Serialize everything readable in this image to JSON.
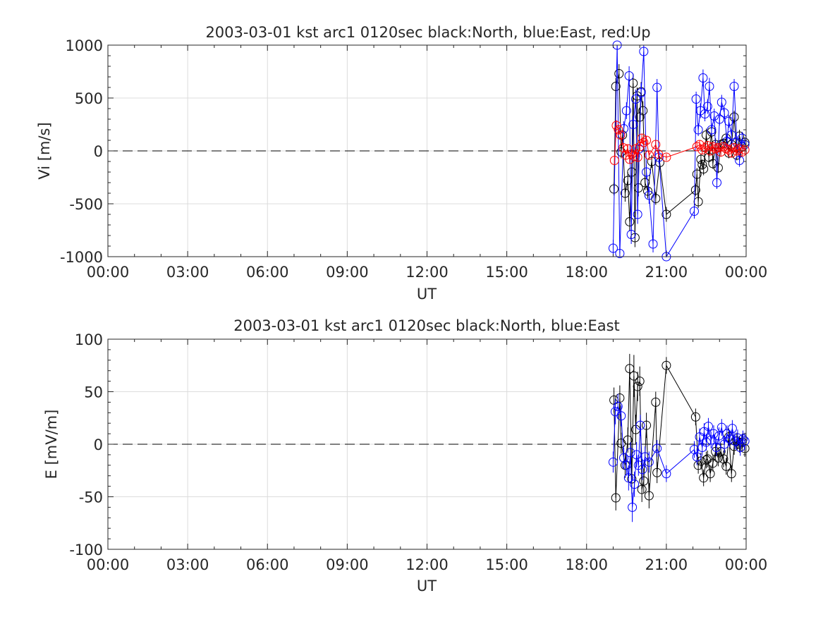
{
  "colors": {
    "north": "#000000",
    "east": "#0000ff",
    "up": "#ff0000",
    "grid": "#dcdcdc",
    "axis": "#262626"
  },
  "x_ticks": [
    "00:00",
    "03:00",
    "06:00",
    "09:00",
    "12:00",
    "15:00",
    "18:00",
    "21:00",
    "00:00"
  ],
  "chart_data": [
    {
      "type": "scatter",
      "title": "2003-03-01 kst arc1 0120sec black:North, blue:East, red:Up",
      "xlabel": "UT",
      "ylabel": "Vi [m/s]",
      "xlim": [
        0,
        24
      ],
      "ylim": [
        -1000,
        1000
      ],
      "y_ticks": [
        "-1000",
        "-500",
        "0",
        "500",
        "1000"
      ],
      "y_tick_values": [
        -1000,
        -500,
        0,
        500,
        1000
      ],
      "grid": true,
      "zero_line": "dashed",
      "series": [
        {
          "color_key": "north",
          "x": [
            19.03,
            19.1,
            19.22,
            19.3,
            19.35,
            19.45,
            19.55,
            19.62,
            19.7,
            19.75,
            19.82,
            19.9,
            19.95,
            20.0,
            20.05,
            20.12,
            20.2,
            20.3,
            20.45,
            20.6,
            20.75,
            21.0,
            22.1,
            22.15,
            22.2,
            22.3,
            22.35,
            22.4,
            22.5,
            22.6,
            22.7,
            22.75,
            22.85,
            22.95,
            23.05,
            23.15,
            23.25,
            23.35,
            23.45,
            23.55,
            23.65,
            23.75,
            23.85,
            23.95
          ],
          "y": [
            -360,
            610,
            730,
            -10,
            150,
            -400,
            -280,
            -670,
            -200,
            640,
            -820,
            520,
            -350,
            320,
            560,
            380,
            -300,
            -380,
            -100,
            -450,
            -110,
            -600,
            -370,
            -220,
            -480,
            -80,
            -130,
            -170,
            150,
            -60,
            180,
            -120,
            60,
            -160,
            60,
            70,
            120,
            -20,
            60,
            320,
            -40,
            140,
            40,
            80
          ],
          "err": [
            60,
            80,
            90,
            60,
            60,
            80,
            80,
            90,
            80,
            90,
            90,
            80,
            80,
            80,
            90,
            90,
            70,
            70,
            60,
            60,
            60,
            70,
            60,
            60,
            60,
            50,
            50,
            60,
            60,
            50,
            60,
            50,
            60,
            50,
            50,
            50,
            60,
            50,
            50,
            60,
            50,
            60,
            50,
            50
          ]
        },
        {
          "color_key": "east",
          "x": [
            19.0,
            19.15,
            19.25,
            19.4,
            19.5,
            19.6,
            19.68,
            19.75,
            19.85,
            19.92,
            19.98,
            20.05,
            20.15,
            20.25,
            20.35,
            20.5,
            20.65,
            20.72,
            21.0,
            22.05,
            22.12,
            22.2,
            22.28,
            22.38,
            22.45,
            22.55,
            22.62,
            22.7,
            22.8,
            22.9,
            23.0,
            23.08,
            23.18,
            23.28,
            23.35,
            23.45,
            23.55,
            23.65,
            23.75,
            23.85,
            23.95
          ],
          "y": [
            -920,
            1000,
            -970,
            210,
            380,
            710,
            -790,
            250,
            490,
            -600,
            20,
            550,
            940,
            -200,
            -420,
            -880,
            600,
            -60,
            -1000,
            -570,
            490,
            200,
            380,
            690,
            350,
            420,
            610,
            200,
            330,
            -300,
            300,
            460,
            360,
            90,
            280,
            150,
            610,
            80,
            -90,
            120,
            60
          ],
          "err": [
            80,
            90,
            90,
            70,
            80,
            90,
            90,
            80,
            90,
            90,
            80,
            90,
            90,
            70,
            80,
            80,
            80,
            60,
            60,
            70,
            70,
            60,
            70,
            80,
            70,
            70,
            80,
            60,
            70,
            60,
            60,
            70,
            60,
            60,
            60,
            60,
            70,
            60,
            60,
            60,
            60
          ]
        },
        {
          "color_key": "up",
          "x": [
            19.05,
            19.12,
            19.2,
            19.28,
            19.38,
            19.48,
            19.55,
            19.62,
            19.7,
            19.78,
            19.85,
            19.92,
            20.0,
            20.08,
            20.15,
            20.25,
            20.35,
            20.6,
            20.7,
            21.0,
            22.15,
            22.25,
            22.35,
            22.45,
            22.55,
            22.65,
            22.75,
            22.85,
            22.95,
            23.05,
            23.15,
            23.25,
            23.35,
            23.45,
            23.55,
            23.65,
            23.75,
            23.85,
            23.95
          ],
          "y": [
            -90,
            240,
            200,
            150,
            30,
            -40,
            20,
            -80,
            -30,
            -50,
            20,
            -60,
            40,
            120,
            80,
            100,
            -40,
            60,
            -30,
            -60,
            40,
            60,
            10,
            30,
            50,
            0,
            40,
            20,
            30,
            -10,
            40,
            20,
            10,
            -20,
            30,
            0,
            20,
            -10,
            10
          ],
          "err": [
            40,
            50,
            50,
            40,
            40,
            40,
            40,
            40,
            40,
            40,
            40,
            40,
            40,
            40,
            40,
            40,
            40,
            40,
            40,
            30,
            40,
            40,
            40,
            40,
            40,
            40,
            40,
            40,
            40,
            40,
            40,
            40,
            40,
            40,
            40,
            40,
            40,
            40,
            40
          ]
        }
      ]
    },
    {
      "type": "scatter",
      "title": "2003-03-01 kst arc1 0120sec black:North, blue:East",
      "xlabel": "UT",
      "ylabel": "E [mV/m]",
      "xlim": [
        0,
        24
      ],
      "ylim": [
        -100,
        100
      ],
      "y_ticks": [
        "-100",
        "-50",
        "0",
        "50",
        "100"
      ],
      "y_tick_values": [
        -100,
        -50,
        0,
        50,
        100
      ],
      "grid": true,
      "zero_line": "dashed",
      "series": [
        {
          "color_key": "north",
          "x": [
            19.03,
            19.1,
            19.25,
            19.3,
            19.45,
            19.55,
            19.62,
            19.7,
            19.78,
            19.85,
            19.92,
            20.0,
            20.08,
            20.15,
            20.25,
            20.35,
            20.6,
            20.65,
            21.0,
            22.1,
            22.2,
            22.3,
            22.4,
            22.5,
            22.55,
            22.65,
            22.75,
            22.85,
            22.95,
            23.05,
            23.15,
            23.25,
            23.35,
            23.45,
            23.55,
            23.65,
            23.75,
            23.85,
            23.95
          ],
          "y": [
            42,
            -51,
            44,
            1,
            -20,
            4,
            72,
            -33,
            65,
            14,
            55,
            60,
            -43,
            -35,
            18,
            -49,
            40,
            -27,
            75,
            26,
            -20,
            -16,
            -32,
            -15,
            -14,
            -28,
            -18,
            -7,
            -13,
            -7,
            -14,
            -21,
            7,
            -28,
            -2,
            3,
            0,
            2,
            -4
          ],
          "err": [
            12,
            12,
            12,
            10,
            12,
            12,
            14,
            14,
            20,
            14,
            14,
            14,
            12,
            12,
            12,
            12,
            10,
            10,
            8,
            8,
            8,
            8,
            8,
            8,
            8,
            8,
            8,
            8,
            8,
            8,
            8,
            8,
            8,
            8,
            8,
            8,
            8,
            8,
            8
          ]
        },
        {
          "color_key": "east",
          "x": [
            19.0,
            19.08,
            19.18,
            19.3,
            19.4,
            19.5,
            19.58,
            19.65,
            19.72,
            19.8,
            19.88,
            19.95,
            20.02,
            20.1,
            20.2,
            20.35,
            20.65,
            21.0,
            22.05,
            22.15,
            22.25,
            22.35,
            22.42,
            22.5,
            22.58,
            22.68,
            22.78,
            22.88,
            22.98,
            23.08,
            23.18,
            23.28,
            23.38,
            23.48,
            23.58,
            23.68,
            23.78,
            23.88,
            23.95
          ],
          "y": [
            -17,
            31,
            36,
            27,
            -13,
            -20,
            -32,
            -8,
            -60,
            -38,
            -10,
            -20,
            18,
            -24,
            -12,
            -17,
            -4,
            -28,
            -5,
            -12,
            7,
            -3,
            12,
            2,
            17,
            4,
            10,
            -3,
            8,
            16,
            0,
            10,
            5,
            15,
            3,
            6,
            -3,
            5,
            3
          ],
          "err": [
            10,
            12,
            12,
            10,
            10,
            10,
            12,
            10,
            14,
            12,
            12,
            10,
            10,
            10,
            10,
            10,
            8,
            8,
            8,
            8,
            8,
            8,
            8,
            8,
            8,
            8,
            8,
            8,
            8,
            8,
            8,
            8,
            8,
            8,
            8,
            8,
            8,
            8,
            8
          ]
        }
      ]
    }
  ]
}
